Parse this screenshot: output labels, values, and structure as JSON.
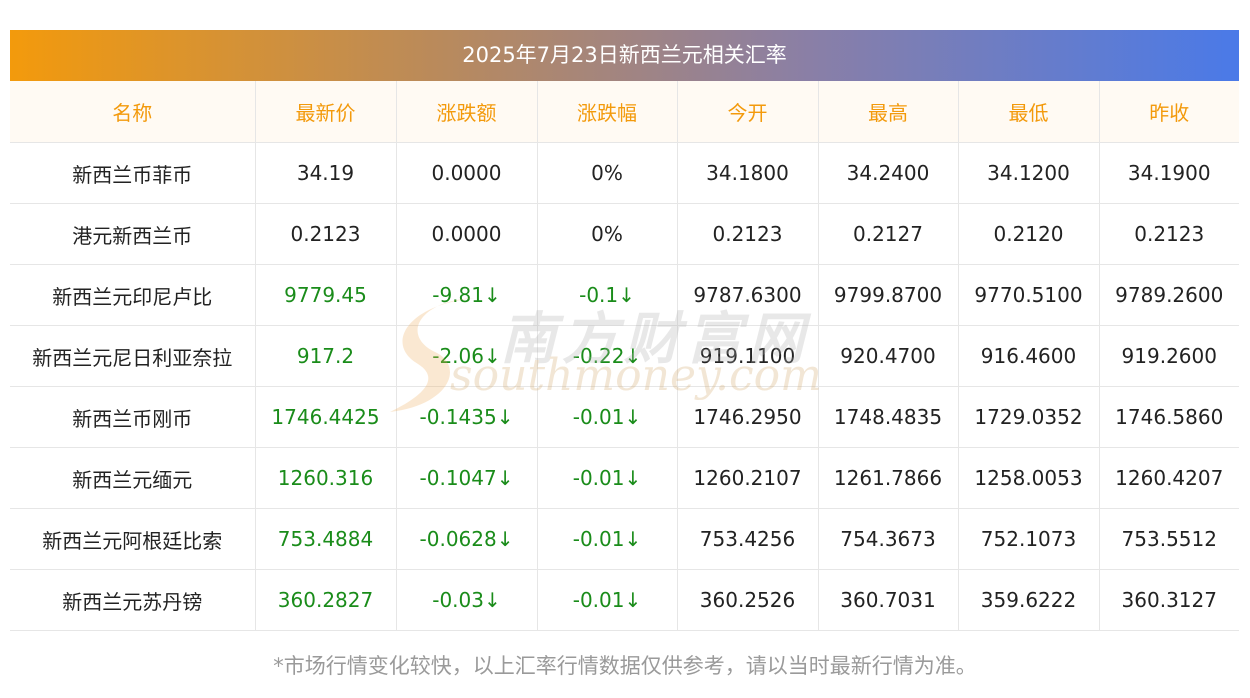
{
  "title": "2025年7月23日新西兰元相关汇率",
  "headers": [
    "名称",
    "最新价",
    "涨跌额",
    "涨跌幅",
    "今开",
    "最高",
    "最低",
    "昨收"
  ],
  "rows": [
    {
      "name": "新西兰币菲币",
      "latest": "34.19",
      "change": "0.0000",
      "change_pct": "0%",
      "open": "34.1800",
      "high": "34.2400",
      "low": "34.1200",
      "prev_close": "34.1900"
    },
    {
      "name": "港元新西兰币",
      "latest": "0.2123",
      "change": "0.0000",
      "change_pct": "0%",
      "open": "0.2123",
      "high": "0.2127",
      "low": "0.2120",
      "prev_close": "0.2123"
    },
    {
      "name": "新西兰元印尼卢比",
      "latest": "9779.45",
      "change": "-9.81↓",
      "change_pct": "-0.1↓",
      "open": "9787.6300",
      "high": "9799.8700",
      "low": "9770.5100",
      "prev_close": "9789.2600"
    },
    {
      "name": "新西兰元尼日利亚奈拉",
      "latest": "917.2",
      "change": "-2.06↓",
      "change_pct": "-0.22↓",
      "open": "919.1100",
      "high": "920.4700",
      "low": "916.4600",
      "prev_close": "919.2600"
    },
    {
      "name": "新西兰币刚币",
      "latest": "1746.4425",
      "change": "-0.1435↓",
      "change_pct": "-0.01↓",
      "open": "1746.2950",
      "high": "1748.4835",
      "low": "1729.0352",
      "prev_close": "1746.5860"
    },
    {
      "name": "新西兰元缅元",
      "latest": "1260.316",
      "change": "-0.1047↓",
      "change_pct": "-0.01↓",
      "open": "1260.2107",
      "high": "1261.7866",
      "low": "1258.0053",
      "prev_close": "1260.4207"
    },
    {
      "name": "新西兰元阿根廷比索",
      "latest": "753.4884",
      "change": "-0.0628↓",
      "change_pct": "-0.01↓",
      "open": "753.4256",
      "high": "754.3673",
      "low": "752.1073",
      "prev_close": "753.5512"
    },
    {
      "name": "新西兰元苏丹镑",
      "latest": "360.2827",
      "change": "-0.03↓",
      "change_pct": "-0.01↓",
      "open": "360.2526",
      "high": "360.7031",
      "low": "359.6222",
      "prev_close": "360.3127"
    }
  ],
  "down_rows": [
    2,
    3,
    4,
    5,
    6,
    7
  ],
  "watermark": {
    "cn": "南方财富网",
    "en": "southmoney.com"
  },
  "footnote": "*市场行情变化较快，以上汇率行情数据仅供参考，请以当时最新行情为准。",
  "colors": {
    "header_text": "#f39a0c",
    "down_green": "#1a8c1a",
    "gradient_start": "#f39a0c",
    "gradient_end": "#4a7ae8"
  }
}
